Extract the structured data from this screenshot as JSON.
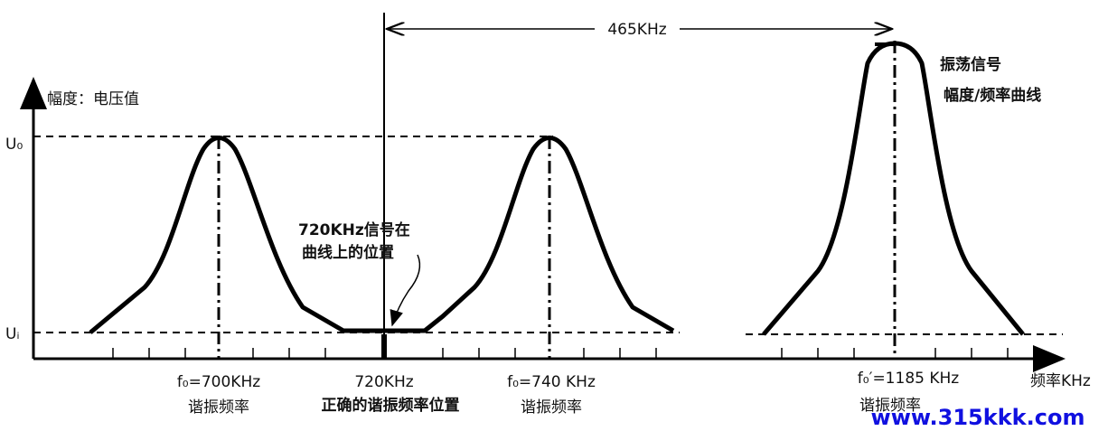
{
  "axis": {
    "y_label": "幅度：电压值",
    "x_label": "频率KHz",
    "u0": "U₀",
    "ui": "Uᵢ"
  },
  "span_label": "465KHz",
  "legend": {
    "line1": "振荡信号",
    "line2": "幅度/频率曲线"
  },
  "annotation": {
    "line1": "720KHz信号在",
    "line2": "曲线上的位置"
  },
  "markers": [
    {
      "freq": "f₀=700KHz",
      "caption": "谐振频率"
    },
    {
      "freq": "720KHz",
      "caption": "正确的谐振频率位置"
    },
    {
      "freq": "f₀=740 KHz",
      "caption": "谐振频率"
    },
    {
      "freq": "f₀′=1185 KHz",
      "caption": "谐振频率"
    }
  ],
  "watermark": "www.315kkk.com"
}
